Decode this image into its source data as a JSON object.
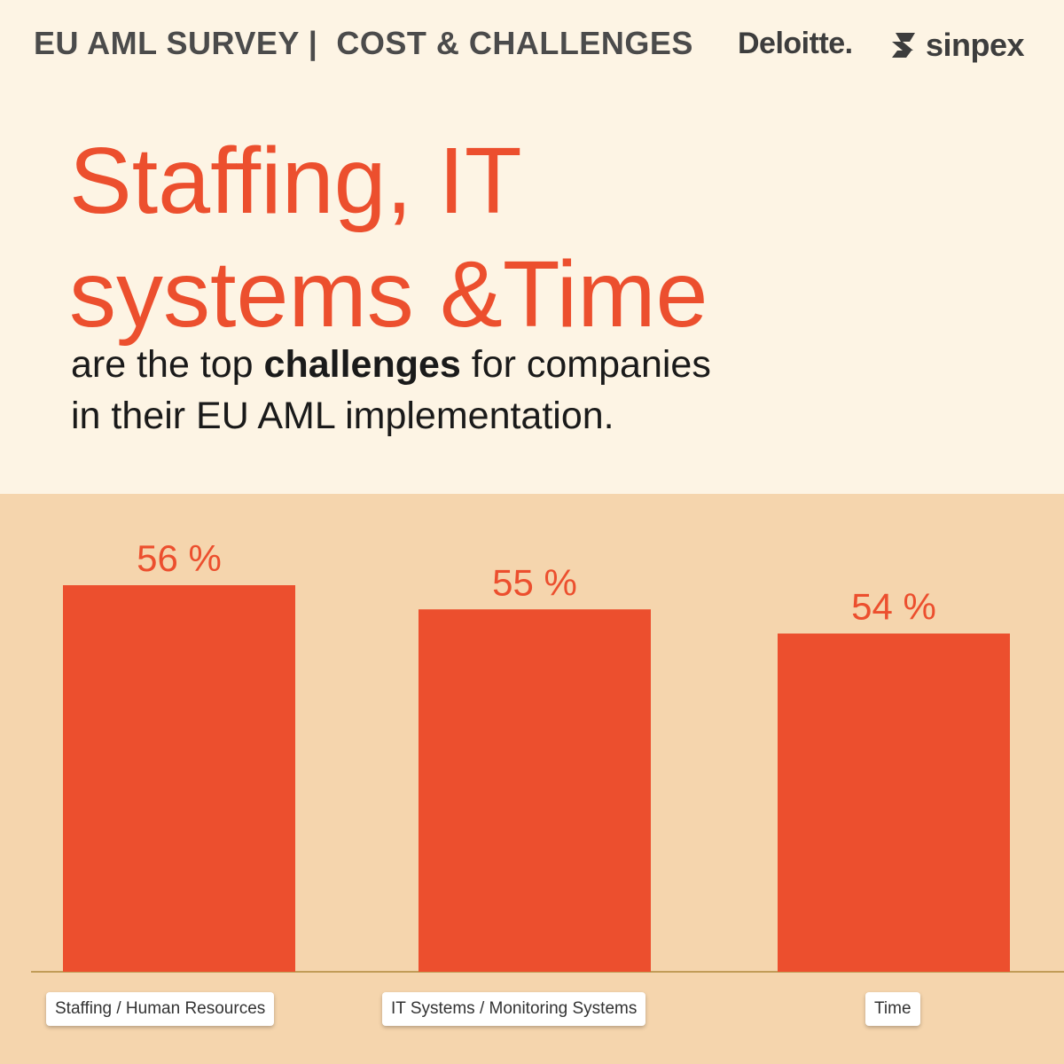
{
  "header": {
    "title": "EU AML SURVEY |  COST & CHALLENGES",
    "logo_deloitte": "Deloitte.",
    "logo_sinpex": "sinpex"
  },
  "headline": {
    "line1": "Staffing, IT",
    "line2": "systems &Time"
  },
  "subtext": {
    "part1": "are the top ",
    "bold": "challenges",
    "part2": " for companies",
    "line2": "in their EU AML implementation."
  },
  "colors": {
    "accent": "#ec4f2e",
    "background_top": "#fdf4e4",
    "background_chart": "#f5d5ad"
  },
  "chart_data": {
    "type": "bar",
    "categories": [
      "Staffing / Human Resources",
      "IT Systems / Monitoring Systems",
      "Time"
    ],
    "values": [
      56,
      55,
      54
    ],
    "value_labels": [
      "56 %",
      "55 %",
      "54 %"
    ],
    "unit": "%",
    "title": "",
    "xlabel": "",
    "ylabel": "",
    "grid": false
  }
}
